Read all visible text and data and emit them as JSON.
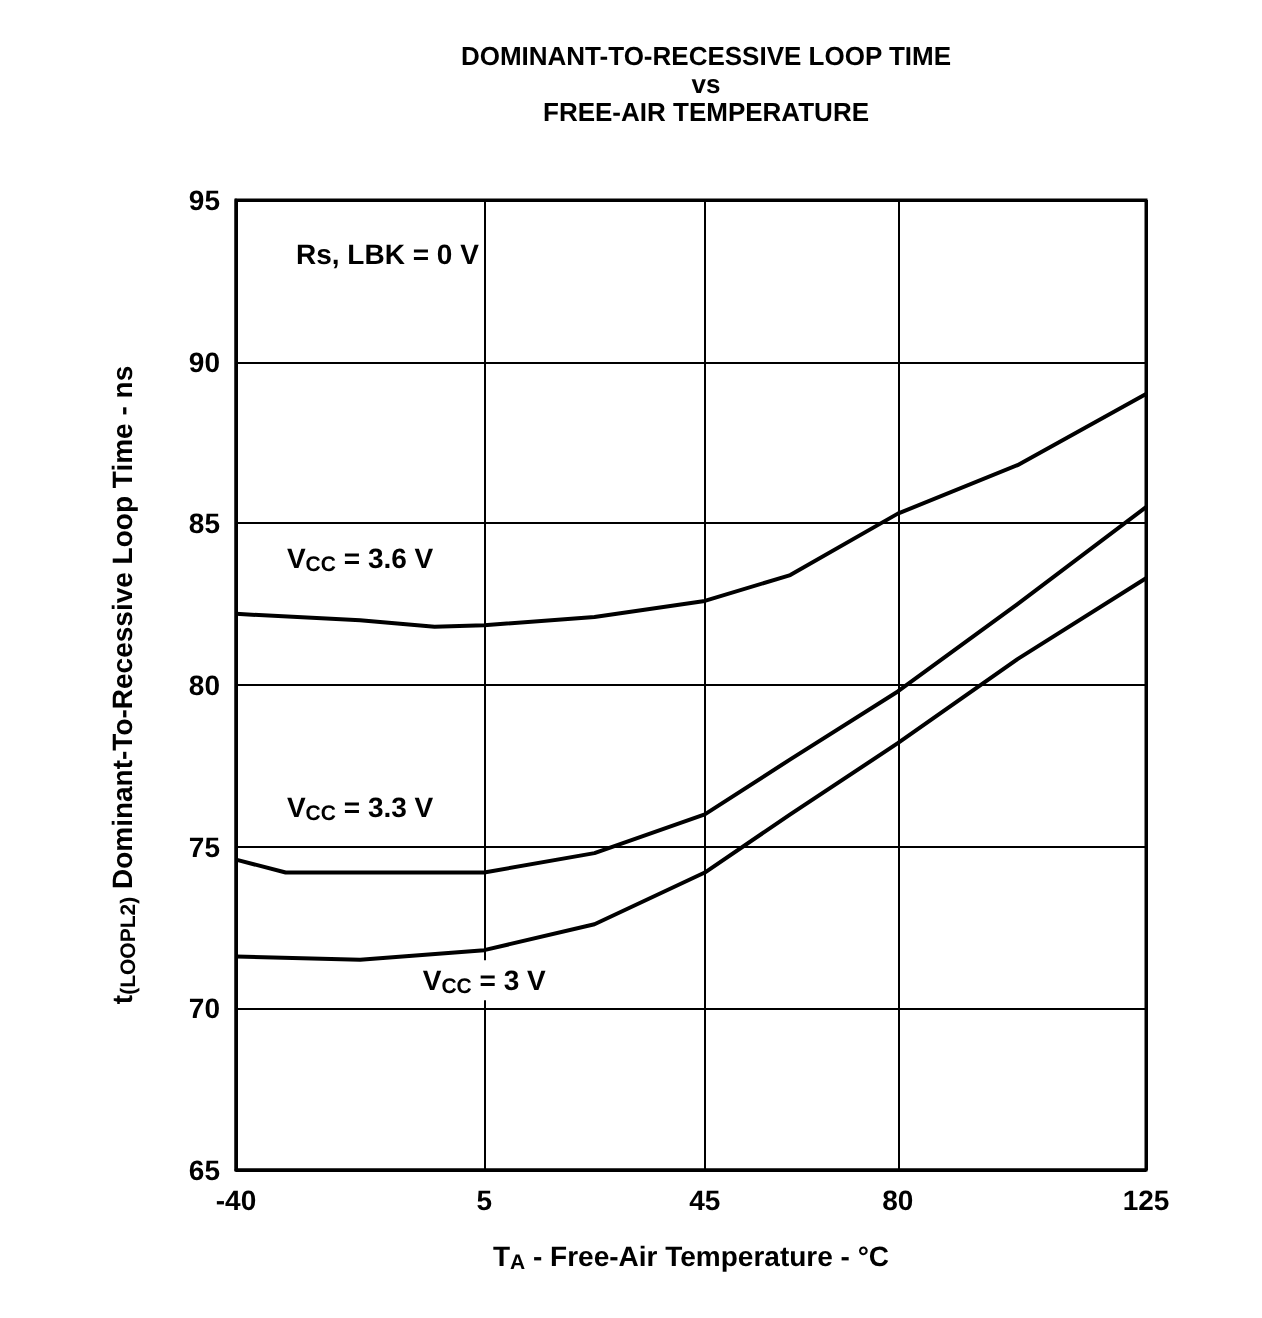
{
  "chart_data": {
    "type": "line",
    "title": "DOMINANT-TO-RECESSIVE LOOP TIME\nvs\nFREE-AIR TEMPERATURE",
    "xlabel": "T$_{A}$ - Free-Air Temperature - °C",
    "ylabel": "t$_{(LOOPL2)}$ Dominant-To-Recessive Loop Time - ns",
    "annotations": [
      "Rs, LBK = 0 V"
    ],
    "series": [
      {
        "name": "V$_{CC}$ = 3.6 V",
        "color": "#000000",
        "x": [
          -40,
          -17.5,
          -4,
          5,
          25,
          45,
          60.5,
          80,
          101.7,
          125
        ],
        "values": [
          82.2,
          82.0,
          81.8,
          81.85,
          82.1,
          82.6,
          83.4,
          85.3,
          86.8,
          89.0
        ]
      },
      {
        "name": "V$_{CC}$ = 3.3 V",
        "color": "#000000",
        "x": [
          -40,
          -31,
          -17.5,
          -4,
          5,
          25,
          45,
          60.5,
          80,
          101.7,
          125
        ],
        "values": [
          74.6,
          74.2,
          74.2,
          74.2,
          74.2,
          74.8,
          76.0,
          77.7,
          79.8,
          82.5,
          85.5
        ]
      },
      {
        "name": "V$_{CC}$ = 3 V",
        "color": "#000000",
        "x": [
          -40,
          -17.5,
          5,
          25,
          45,
          60.5,
          80,
          101.7,
          125
        ],
        "values": [
          71.6,
          71.5,
          71.8,
          72.6,
          74.2,
          76.0,
          78.2,
          80.8,
          83.3
        ]
      }
    ],
    "xlim": [
      -40,
      125
    ],
    "xticks": [
      -40,
      5,
      45,
      80,
      125
    ],
    "ylim": [
      65,
      95
    ],
    "yticks": [
      65,
      70,
      75,
      80,
      85,
      90,
      95
    ],
    "grid": true,
    "legend": false,
    "marker": "none",
    "line_style": "solid"
  }
}
